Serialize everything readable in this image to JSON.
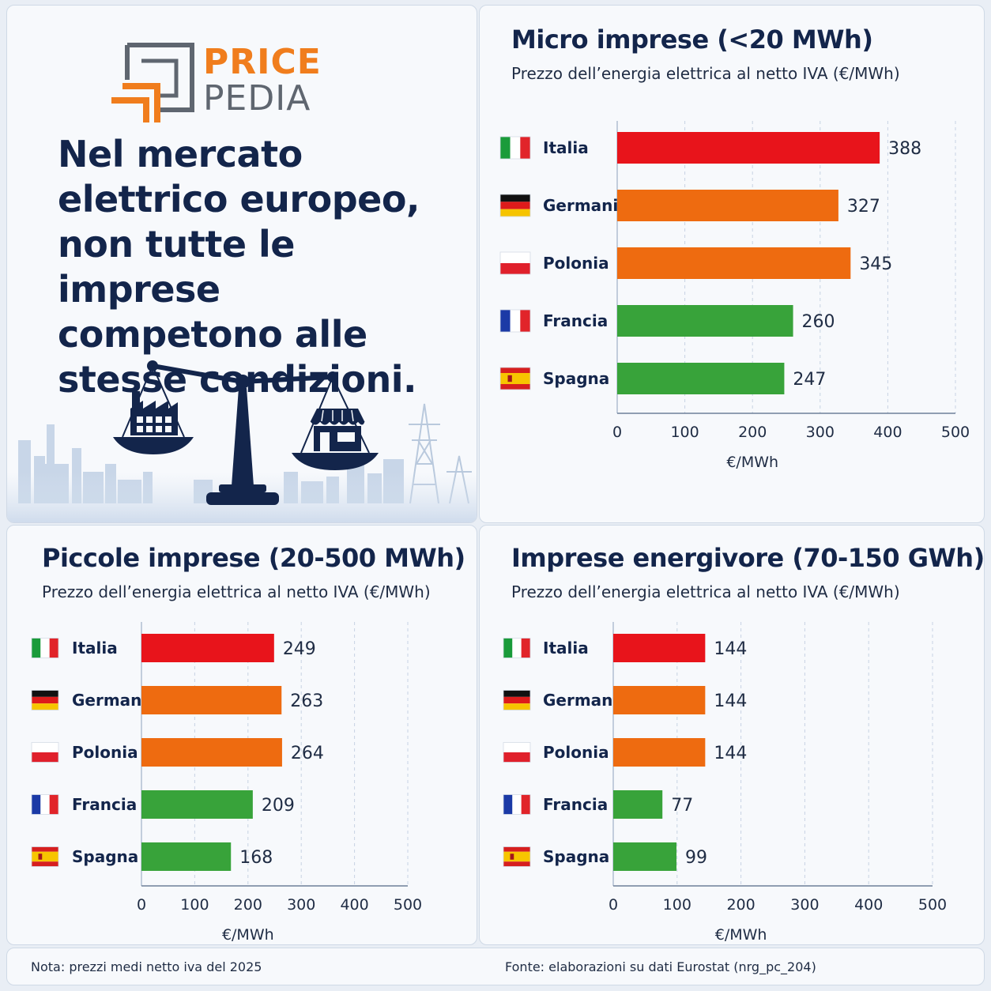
{
  "brand": {
    "line1": "PRICE",
    "line2": "PEDIA"
  },
  "headline": {
    "lines": [
      "Nel mercato",
      "elettrico europeo,",
      "non tutte le imprese",
      "competono alle",
      "stesse condizioni."
    ]
  },
  "colors": {
    "red": "#e8141b",
    "orange": "#ee6b10",
    "green": "#38a33a",
    "navy": "#13254b",
    "brand_orange": "#f07d1d"
  },
  "flags": {
    "Italia": "italy-flag",
    "Germania": "germany-flag",
    "Polonia": "poland-flag",
    "Francia": "france-flag",
    "Spagna": "spain-flag"
  },
  "chart_data": [
    {
      "type": "bar",
      "orientation": "horizontal",
      "title": "Micro imprese (<20 MWh)",
      "subtitle": "Prezzo dell’energia elettrica al netto IVA (€/MWh)",
      "categories": [
        "Italia",
        "Germania",
        "Polonia",
        "Francia",
        "Spagna"
      ],
      "values": [
        388,
        327,
        345,
        260,
        247
      ],
      "bar_colors": [
        "#e8141b",
        "#ee6b10",
        "#ee6b10",
        "#38a33a",
        "#38a33a"
      ],
      "xlabel": "€/MWh",
      "xlim": [
        0,
        500
      ],
      "xticks": [
        0,
        100,
        200,
        300,
        400,
        500
      ],
      "grid": "vertical dashed"
    },
    {
      "type": "bar",
      "orientation": "horizontal",
      "title": "Piccole imprese (20-500 MWh)",
      "subtitle": "Prezzo dell’energia elettrica al netto IVA (€/MWh)",
      "categories": [
        "Italia",
        "Germania",
        "Polonia",
        "Francia",
        "Spagna"
      ],
      "values": [
        249,
        263,
        264,
        209,
        168
      ],
      "bar_colors": [
        "#e8141b",
        "#ee6b10",
        "#ee6b10",
        "#38a33a",
        "#38a33a"
      ],
      "xlabel": "€/MWh",
      "xlim": [
        0,
        500
      ],
      "xticks": [
        0,
        100,
        200,
        300,
        400,
        500
      ],
      "grid": "vertical dashed"
    },
    {
      "type": "bar",
      "orientation": "horizontal",
      "title": "Imprese energivore (70-150 GWh)",
      "subtitle": "Prezzo dell’energia elettrica al netto IVA (€/MWh)",
      "categories": [
        "Italia",
        "Germania",
        "Polonia",
        "Francia",
        "Spagna"
      ],
      "values": [
        144,
        144,
        144,
        77,
        99
      ],
      "bar_colors": [
        "#e8141b",
        "#ee6b10",
        "#ee6b10",
        "#38a33a",
        "#38a33a"
      ],
      "xlabel": "€/MWh",
      "xlim": [
        0,
        500
      ],
      "xticks": [
        0,
        100,
        200,
        300,
        400,
        500
      ],
      "grid": "vertical dashed"
    }
  ],
  "footer": {
    "note": "Nota: prezzi medi netto iva del 2025",
    "source": "Fonte: elaborazioni su dati Eurostat (nrg_pc_204)"
  }
}
